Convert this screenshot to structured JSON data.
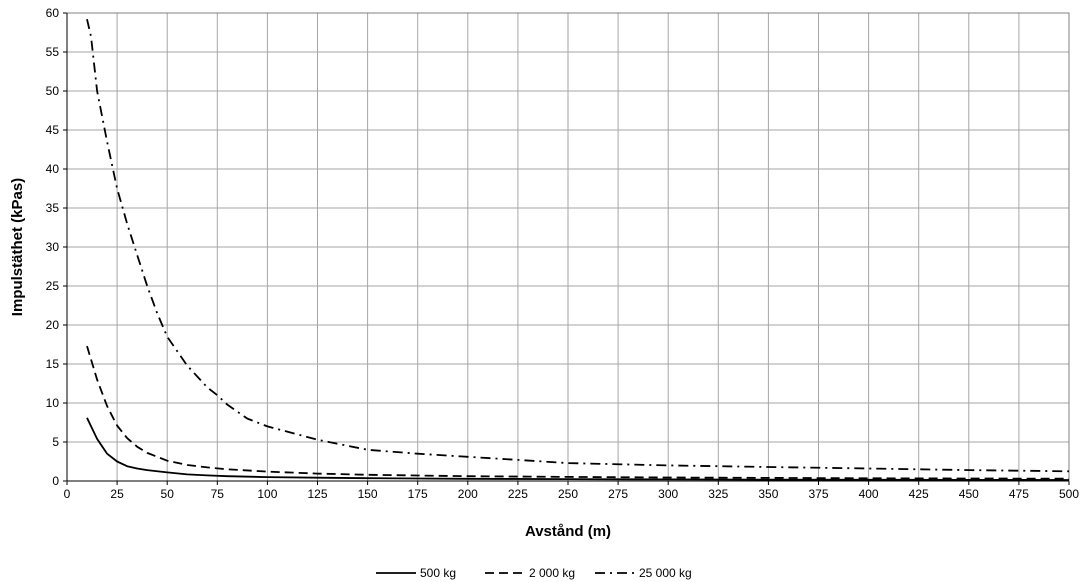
{
  "chart_data": {
    "type": "line",
    "title": "",
    "xlabel": "Avstånd (m)",
    "ylabel": "Impulstäthet (kPas)",
    "xlim": [
      0,
      500
    ],
    "ylim": [
      0,
      60
    ],
    "x_ticks": [
      0,
      25,
      50,
      75,
      100,
      125,
      150,
      175,
      200,
      225,
      250,
      275,
      300,
      325,
      350,
      375,
      400,
      425,
      450,
      475,
      500
    ],
    "y_ticks": [
      0,
      5,
      10,
      15,
      20,
      25,
      30,
      35,
      40,
      45,
      50,
      55,
      60
    ],
    "grid": true,
    "legend_position": "bottom",
    "series": [
      {
        "name": "500 kg",
        "line_style": "solid",
        "color": "#000000",
        "x": [
          10,
          15,
          20,
          25,
          30,
          35,
          40,
          50,
          60,
          70,
          80,
          100,
          125,
          150,
          175,
          200,
          250,
          300,
          350,
          400,
          450,
          500
        ],
        "y": [
          8.1,
          5.4,
          3.5,
          2.5,
          1.9,
          1.6,
          1.4,
          1.1,
          0.85,
          0.72,
          0.62,
          0.5,
          0.42,
          0.36,
          0.32,
          0.28,
          0.24,
          0.21,
          0.18,
          0.16,
          0.14,
          0.13
        ]
      },
      {
        "name": "2 000 kg",
        "line_style": "dashed",
        "color": "#000000",
        "x": [
          10,
          15,
          20,
          25,
          30,
          35,
          40,
          50,
          60,
          70,
          80,
          100,
          125,
          150,
          175,
          200,
          250,
          300,
          350,
          400,
          450,
          500
        ],
        "y": [
          17.3,
          13.0,
          9.6,
          7.1,
          5.5,
          4.4,
          3.6,
          2.6,
          2.05,
          1.75,
          1.5,
          1.2,
          0.95,
          0.8,
          0.7,
          0.62,
          0.52,
          0.45,
          0.4,
          0.35,
          0.32,
          0.3
        ]
      },
      {
        "name": "25 000 kg",
        "line_style": "dash-dot",
        "color": "#000000",
        "x": [
          10,
          12,
          15,
          20,
          25,
          30,
          35,
          40,
          45,
          50,
          60,
          70,
          75,
          80,
          90,
          100,
          125,
          150,
          175,
          200,
          225,
          250,
          300,
          350,
          400,
          450,
          500
        ],
        "y": [
          59.2,
          57.0,
          50.0,
          43.5,
          37.5,
          33.0,
          29.0,
          25.0,
          21.5,
          18.5,
          14.8,
          12.0,
          11.0,
          9.8,
          8.0,
          7.0,
          5.3,
          4.0,
          3.5,
          3.1,
          2.7,
          2.3,
          2.0,
          1.8,
          1.6,
          1.4,
          1.25
        ]
      }
    ]
  }
}
